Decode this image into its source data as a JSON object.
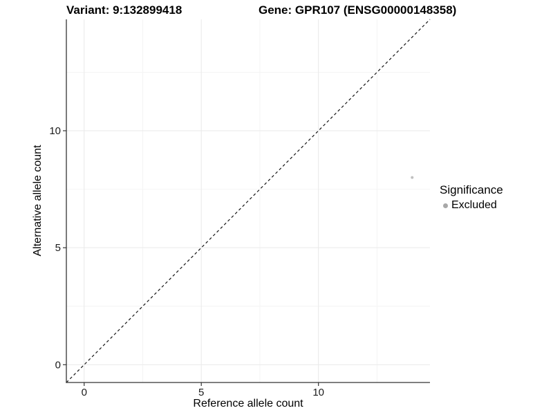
{
  "chart_data": {
    "type": "scatter",
    "title_left": "Variant: 9:132899418",
    "title_right": "Gene: GPR107 (ENSG00000148358)",
    "xlabel": "Reference allele count",
    "ylabel": "Alternative allele count",
    "xlim": [
      -0.76,
      14.76
    ],
    "ylim": [
      -0.76,
      14.76
    ],
    "x_ticks": [
      0,
      5,
      10
    ],
    "y_ticks": [
      0,
      5,
      10
    ],
    "x_minor_ticks": [
      2.5,
      7.5,
      12.5
    ],
    "y_minor_ticks": [
      2.5,
      7.5,
      12.5
    ],
    "grid": "major-and-minor",
    "identity_line": {
      "style": "dashed",
      "slope": 1,
      "intercept": 0,
      "color": "#141414"
    },
    "series": [
      {
        "name": "Excluded",
        "color": "#c0c0c0",
        "point_radius": 2,
        "points": [
          {
            "x": 14,
            "y": 8
          }
        ]
      }
    ],
    "legend": {
      "title": "Significance",
      "position": "right",
      "items": [
        {
          "label": "Excluded",
          "color": "#a8a8a8"
        }
      ]
    },
    "style": {
      "background": "#ffffff",
      "axis_color": "#333333",
      "tick_color": "#333333",
      "tick_label_color": "#1a1a1a",
      "grid_major_color": "#e9e9e9",
      "grid_minor_color": "#f4f4f4"
    }
  }
}
